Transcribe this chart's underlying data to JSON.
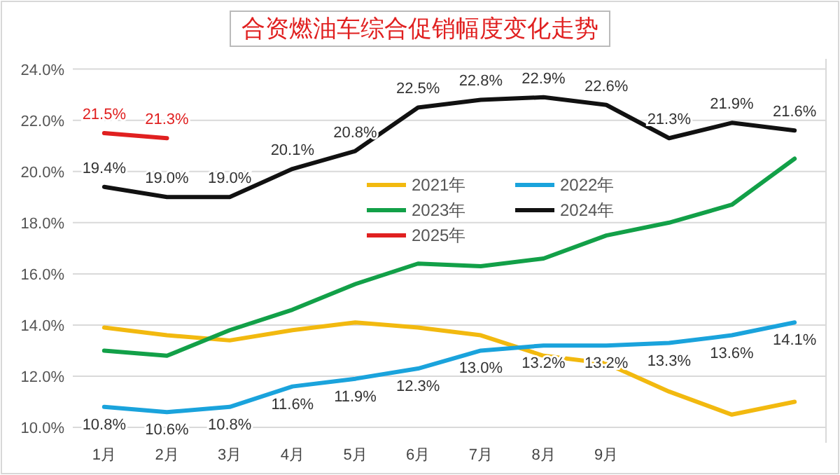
{
  "chart_data": {
    "type": "line",
    "title": "合资燃油车综合促销幅度变化走势",
    "categories": [
      "1月",
      "2月",
      "3月",
      "4月",
      "5月",
      "6月",
      "7月",
      "8月",
      "9月",
      null,
      null,
      null
    ],
    "series": [
      {
        "name": "2021年",
        "color": "#f2b90f",
        "values": [
          13.9,
          13.6,
          13.4,
          13.8,
          14.1,
          13.9,
          13.6,
          12.8,
          12.5,
          11.4,
          10.5,
          11.0
        ]
      },
      {
        "name": "2022年",
        "color": "#1aa3dc",
        "values": [
          10.8,
          10.6,
          10.8,
          11.6,
          11.9,
          12.3,
          13.0,
          13.2,
          13.2,
          13.3,
          13.6,
          14.1
        ],
        "value_labels": [
          "10.8%",
          "10.6%",
          "10.8%",
          "11.6%",
          "11.9%",
          "12.3%",
          "13.0%",
          "13.2%",
          "13.2%",
          "13.3%",
          "13.6%",
          "14.1%"
        ]
      },
      {
        "name": "2023年",
        "color": "#12a048",
        "values": [
          13.0,
          12.8,
          13.8,
          14.6,
          15.6,
          16.4,
          16.3,
          16.6,
          17.5,
          18.0,
          18.7,
          20.5
        ]
      },
      {
        "name": "2024年",
        "color": "#111111",
        "values": [
          19.4,
          19.0,
          19.0,
          20.1,
          20.8,
          22.5,
          22.8,
          22.9,
          22.6,
          21.3,
          21.9,
          21.6
        ],
        "value_labels": [
          "19.4%",
          "19.0%",
          "19.0%",
          "20.1%",
          "20.8%",
          "22.5%",
          "22.8%",
          "22.9%",
          "22.6%",
          "21.3%",
          "21.9%",
          "21.6%"
        ]
      },
      {
        "name": "2025年",
        "color": "#e02020",
        "values": [
          21.5,
          21.3,
          null,
          null,
          null,
          null,
          null,
          null,
          null,
          null,
          null,
          null
        ],
        "value_labels": [
          "21.5%",
          "21.3%",
          null,
          null,
          null,
          null,
          null,
          null,
          null,
          null,
          null,
          null
        ]
      }
    ],
    "ylim": [
      9.4,
      24.4
    ],
    "yticks": [
      {
        "value": 10,
        "label": "10.0%"
      },
      {
        "value": 12,
        "label": "12.0%"
      },
      {
        "value": 14,
        "label": "14.0%"
      },
      {
        "value": 16,
        "label": "16.0%"
      },
      {
        "value": 18,
        "label": "18.0%"
      },
      {
        "value": 20,
        "label": "20.0%"
      },
      {
        "value": 22,
        "label": "22.0%"
      },
      {
        "value": 24,
        "label": "24.0%"
      }
    ],
    "grid": "y",
    "legend": "center",
    "line_style": "solid",
    "marker": "none"
  }
}
